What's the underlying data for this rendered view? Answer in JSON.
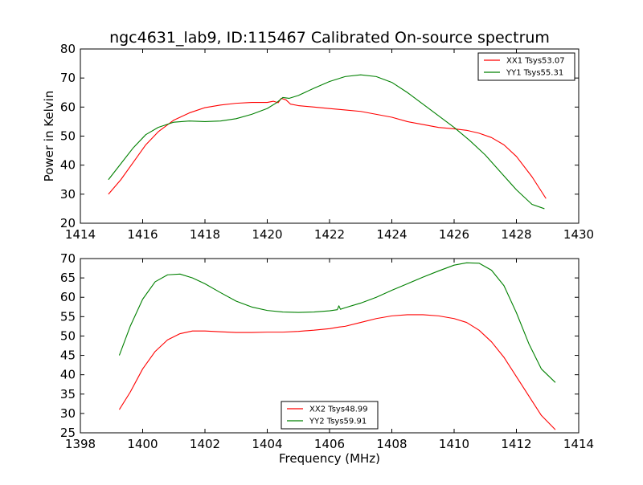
{
  "chart_data": [
    {
      "type": "line",
      "title": "ngc4631_lab9, ID:115467 Calibrated On-source spectrum",
      "xlabel": "",
      "ylabel": "Power in Kelvin",
      "xlim": [
        1414,
        1430
      ],
      "ylim": [
        20,
        80
      ],
      "xticks": [
        1414,
        1416,
        1418,
        1420,
        1422,
        1424,
        1426,
        1428,
        1430
      ],
      "yticks": [
        20,
        30,
        40,
        50,
        60,
        70,
        80
      ],
      "grid": false,
      "legend_position": "upper right",
      "series": [
        {
          "name": "XX1 Tsys53.07",
          "color": "#ff0000",
          "x": [
            1414.9,
            1415.3,
            1415.7,
            1416.1,
            1416.5,
            1417.0,
            1417.5,
            1418.0,
            1418.5,
            1419.0,
            1419.5,
            1420.0,
            1420.2,
            1420.35,
            1420.45,
            1420.6,
            1420.75,
            1421.0,
            1421.5,
            1422.0,
            1422.5,
            1423.0,
            1423.5,
            1424.0,
            1424.5,
            1425.0,
            1425.5,
            1426.0,
            1426.4,
            1426.8,
            1427.2,
            1427.6,
            1428.0,
            1428.5,
            1428.95
          ],
          "y": [
            30,
            35,
            41,
            47,
            51.5,
            55.5,
            58,
            59.8,
            60.7,
            61.3,
            61.6,
            61.6,
            62,
            61.5,
            63,
            62.5,
            61,
            60.5,
            60,
            59.5,
            59,
            58.5,
            57.5,
            56.5,
            55,
            54,
            53,
            52.5,
            52,
            51,
            49.5,
            47,
            43,
            36,
            28.5
          ]
        },
        {
          "name": "YY1 Tsys55.31",
          "color": "#008000",
          "x": [
            1414.9,
            1415.3,
            1415.7,
            1416.1,
            1416.5,
            1417.0,
            1417.5,
            1418.0,
            1418.5,
            1419.0,
            1419.5,
            1420.0,
            1420.3,
            1420.5,
            1420.7,
            1421.0,
            1421.5,
            1422.0,
            1422.5,
            1423.0,
            1423.5,
            1424.0,
            1424.5,
            1425.0,
            1425.5,
            1426.0,
            1426.5,
            1427.0,
            1427.5,
            1428.0,
            1428.5,
            1428.9
          ],
          "y": [
            35,
            40.5,
            46,
            50.5,
            53,
            54.8,
            55.2,
            55,
            55.2,
            56,
            57.5,
            59.5,
            61.5,
            63.3,
            63,
            64,
            66.5,
            68.8,
            70.5,
            71.1,
            70.5,
            68.5,
            65,
            61,
            57,
            53,
            48.5,
            43.5,
            37.5,
            31.5,
            26.5,
            25
          ]
        }
      ]
    },
    {
      "type": "line",
      "title": "",
      "xlabel": "Frequency (MHz)",
      "ylabel": "",
      "xlim": [
        1398,
        1414
      ],
      "ylim": [
        25,
        70
      ],
      "xticks": [
        1398,
        1400,
        1402,
        1404,
        1406,
        1408,
        1410,
        1412,
        1414
      ],
      "yticks": [
        25,
        30,
        35,
        40,
        45,
        50,
        55,
        60,
        65,
        70
      ],
      "grid": false,
      "legend_position": "lower center",
      "series": [
        {
          "name": "XX2 Tsys48.99",
          "color": "#ff0000",
          "x": [
            1399.25,
            1399.6,
            1400.0,
            1400.4,
            1400.8,
            1401.2,
            1401.6,
            1402.0,
            1402.5,
            1403.0,
            1403.5,
            1404.0,
            1404.5,
            1405.0,
            1405.5,
            1406.0,
            1406.3,
            1406.5,
            1407.0,
            1407.5,
            1408.0,
            1408.5,
            1409.0,
            1409.5,
            1410.0,
            1410.4,
            1410.8,
            1411.2,
            1411.6,
            1412.0,
            1412.4,
            1412.8,
            1413.25
          ],
          "y": [
            31,
            35.5,
            41.5,
            46,
            49,
            50.6,
            51.3,
            51.3,
            51.1,
            50.9,
            50.9,
            51,
            51,
            51.2,
            51.5,
            51.9,
            52.3,
            52.5,
            53.5,
            54.5,
            55.2,
            55.5,
            55.5,
            55.2,
            54.5,
            53.5,
            51.5,
            48.5,
            44.5,
            39.5,
            34.5,
            29.5,
            25.8
          ]
        },
        {
          "name": "YY2 Tsys59.91",
          "color": "#008000",
          "x": [
            1399.25,
            1399.6,
            1400.0,
            1400.4,
            1400.8,
            1401.2,
            1401.6,
            1402.0,
            1402.5,
            1403.0,
            1403.5,
            1404.0,
            1404.5,
            1405.0,
            1405.5,
            1406.0,
            1406.25,
            1406.3,
            1406.35,
            1406.5,
            1407.0,
            1407.5,
            1408.0,
            1408.5,
            1409.0,
            1409.5,
            1410.0,
            1410.4,
            1410.8,
            1411.2,
            1411.6,
            1412.0,
            1412.4,
            1412.8,
            1413.25
          ],
          "y": [
            45,
            52.5,
            59.5,
            64,
            65.8,
            66,
            65,
            63.5,
            61.2,
            59,
            57.5,
            56.6,
            56.2,
            56.1,
            56.2,
            56.5,
            56.8,
            57.8,
            56.9,
            57.3,
            58.5,
            60,
            61.8,
            63.5,
            65.2,
            66.8,
            68.3,
            68.9,
            68.8,
            67,
            63,
            56,
            48,
            41.5,
            38
          ]
        }
      ]
    }
  ]
}
